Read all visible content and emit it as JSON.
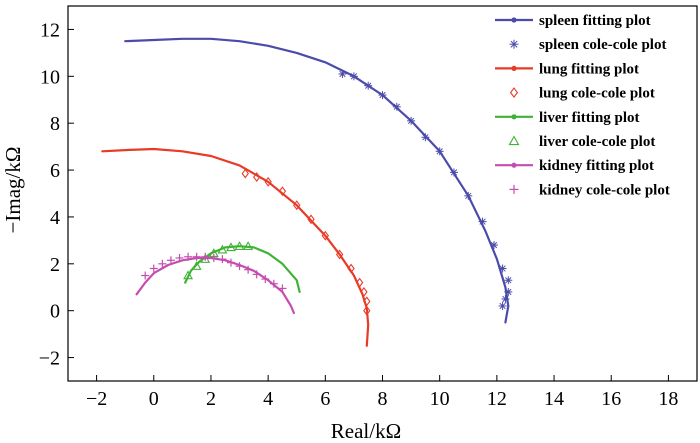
{
  "chart_data": {
    "type": "scatter",
    "xlabel": "Real/kΩ",
    "ylabel": "−Imag/kΩ",
    "xlim": [
      -3,
      19
    ],
    "ylim": [
      -3,
      13
    ],
    "xticks": [
      -2,
      0,
      2,
      4,
      6,
      8,
      10,
      12,
      14,
      16,
      18
    ],
    "yticks": [
      -2,
      0,
      2,
      4,
      6,
      8,
      10,
      12
    ],
    "x_tick_labels": [
      "−2",
      "0",
      "2",
      "4",
      "6",
      "8",
      "10",
      "12",
      "14",
      "16",
      "18"
    ],
    "y_tick_labels": [
      "−2",
      "0",
      "2",
      "4",
      "6",
      "8",
      "10",
      "12"
    ],
    "grid": false,
    "legend_position": "top-right",
    "legend": [
      "spleen fitting plot",
      "spleen cole-cole plot",
      "lung fitting plot",
      "lung cole-cole plot",
      "liver fitting plot",
      "liver cole-cole plot",
      "kidney fitting plot",
      "kidney cole-cole plot"
    ],
    "colors": {
      "spleen": "#4b4bab",
      "lung": "#e83a26",
      "liver": "#3fb335",
      "kidney": "#c64db0"
    },
    "series": [
      {
        "name": "spleen fitting plot",
        "kind": "line",
        "color": "#4b4bab",
        "x": [
          -1.0,
          0.0,
          1.0,
          2.0,
          3.0,
          4.0,
          5.0,
          6.0,
          7.0,
          8.0,
          9.0,
          10.0,
          11.0,
          11.6,
          12.0,
          12.3,
          12.4,
          12.3
        ],
        "y": [
          11.5,
          11.55,
          11.6,
          11.6,
          11.5,
          11.3,
          11.0,
          10.6,
          10.0,
          9.2,
          8.1,
          6.8,
          4.9,
          3.4,
          2.2,
          1.0,
          0.2,
          -0.5
        ]
      },
      {
        "name": "spleen cole-cole plot",
        "kind": "scatter",
        "marker": "star",
        "color": "#4b4bab",
        "x": [
          6.6,
          7.0,
          7.5,
          8.0,
          8.5,
          9.0,
          9.5,
          10.0,
          10.5,
          11.0,
          11.5,
          11.9,
          12.2,
          12.4,
          12.4,
          12.3,
          12.2
        ],
        "y": [
          10.1,
          10.0,
          9.6,
          9.2,
          8.7,
          8.1,
          7.4,
          6.8,
          5.9,
          4.9,
          3.8,
          2.8,
          1.8,
          1.3,
          0.8,
          0.5,
          0.2
        ]
      },
      {
        "name": "lung fitting plot",
        "kind": "line",
        "color": "#e83a26",
        "x": [
          -1.8,
          -1.0,
          0.0,
          1.0,
          2.0,
          3.0,
          4.0,
          5.0,
          6.0,
          6.5,
          7.0,
          7.3,
          7.45,
          7.5,
          7.45
        ],
        "y": [
          6.8,
          6.85,
          6.9,
          6.8,
          6.6,
          6.2,
          5.5,
          4.5,
          3.2,
          2.4,
          1.5,
          0.7,
          0.1,
          -0.6,
          -1.5
        ]
      },
      {
        "name": "lung cole-cole plot",
        "kind": "scatter",
        "marker": "diamond",
        "color": "#e83a26",
        "x": [
          3.2,
          3.6,
          4.0,
          4.5,
          5.0,
          5.5,
          6.0,
          6.5,
          6.9,
          7.2,
          7.35,
          7.45,
          7.45
        ],
        "y": [
          5.85,
          5.7,
          5.5,
          5.1,
          4.5,
          3.9,
          3.2,
          2.4,
          1.8,
          1.2,
          0.8,
          0.4,
          0.0
        ]
      },
      {
        "name": "liver fitting plot",
        "kind": "line",
        "color": "#3fb335",
        "x": [
          1.1,
          1.3,
          1.6,
          2.0,
          2.5,
          3.0,
          3.5,
          4.0,
          4.5,
          5.0,
          5.1
        ],
        "y": [
          1.2,
          1.7,
          2.1,
          2.45,
          2.7,
          2.75,
          2.7,
          2.45,
          2.0,
          1.3,
          0.8
        ]
      },
      {
        "name": "liver cole-cole plot",
        "kind": "scatter",
        "marker": "triangle",
        "color": "#3fb335",
        "x": [
          1.2,
          1.5,
          1.8,
          2.1,
          2.4,
          2.7,
          3.0,
          3.3
        ],
        "y": [
          1.5,
          1.9,
          2.2,
          2.45,
          2.6,
          2.7,
          2.75,
          2.75
        ]
      },
      {
        "name": "kidney fitting plot",
        "kind": "line",
        "color": "#c64db0",
        "x": [
          -0.6,
          -0.3,
          0.0,
          0.5,
          1.0,
          1.5,
          2.0,
          2.5,
          3.0,
          3.5,
          4.0,
          4.5,
          4.8,
          4.9
        ],
        "y": [
          0.7,
          1.2,
          1.6,
          1.95,
          2.15,
          2.25,
          2.25,
          2.15,
          1.95,
          1.7,
          1.3,
          0.8,
          0.2,
          -0.1
        ]
      },
      {
        "name": "kidney cole-cole plot",
        "kind": "scatter",
        "marker": "plus",
        "color": "#c64db0",
        "x": [
          -0.3,
          0.0,
          0.3,
          0.6,
          0.9,
          1.2,
          1.5,
          1.8,
          2.1,
          2.4,
          2.7,
          3.0,
          3.3,
          3.6,
          3.9,
          4.2,
          4.5
        ],
        "y": [
          1.5,
          1.8,
          2.0,
          2.15,
          2.25,
          2.3,
          2.3,
          2.3,
          2.25,
          2.2,
          2.05,
          1.9,
          1.75,
          1.55,
          1.35,
          1.15,
          0.95
        ]
      }
    ]
  }
}
